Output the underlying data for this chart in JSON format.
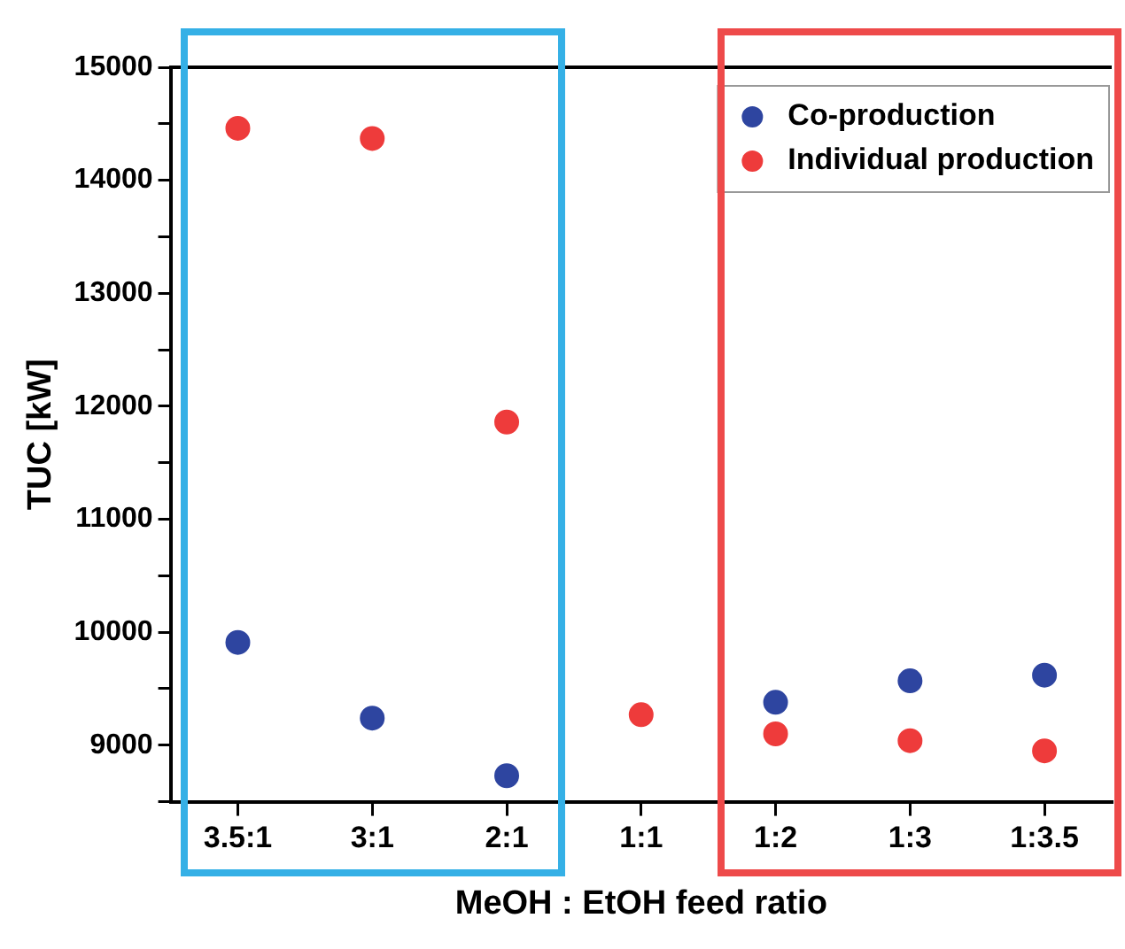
{
  "chart_data": {
    "type": "scatter",
    "xlabel": "MeOH : EtOH feed ratio",
    "ylabel": "TUC [kW]",
    "categories": [
      "3.5:1",
      "3:1",
      "2:1",
      "1:1",
      "1:2",
      "1:3",
      "1:3.5"
    ],
    "series": [
      {
        "name": "Co-production",
        "color": "#2e45a0",
        "values": [
          9910,
          9240,
          8730,
          null,
          9380,
          9570,
          9620
        ]
      },
      {
        "name": "Individual production",
        "color": "#ee3b3b",
        "values": [
          14460,
          14370,
          11860,
          9270,
          9100,
          9040,
          8950
        ]
      }
    ],
    "ylim": [
      8500,
      15000
    ],
    "yticks": [
      {
        "value": 8500,
        "label": null
      },
      9000,
      {
        "value": 9500,
        "label": null
      },
      10000,
      {
        "value": 10500,
        "label": null
      },
      11000,
      {
        "value": 11500,
        "label": null
      },
      12000,
      {
        "value": 12500,
        "label": null
      },
      13000,
      {
        "value": 13500,
        "label": null
      },
      14000,
      {
        "value": 14500,
        "label": null
      },
      15000
    ],
    "grid": false,
    "legend": "top right",
    "marker": "circle"
  }
}
